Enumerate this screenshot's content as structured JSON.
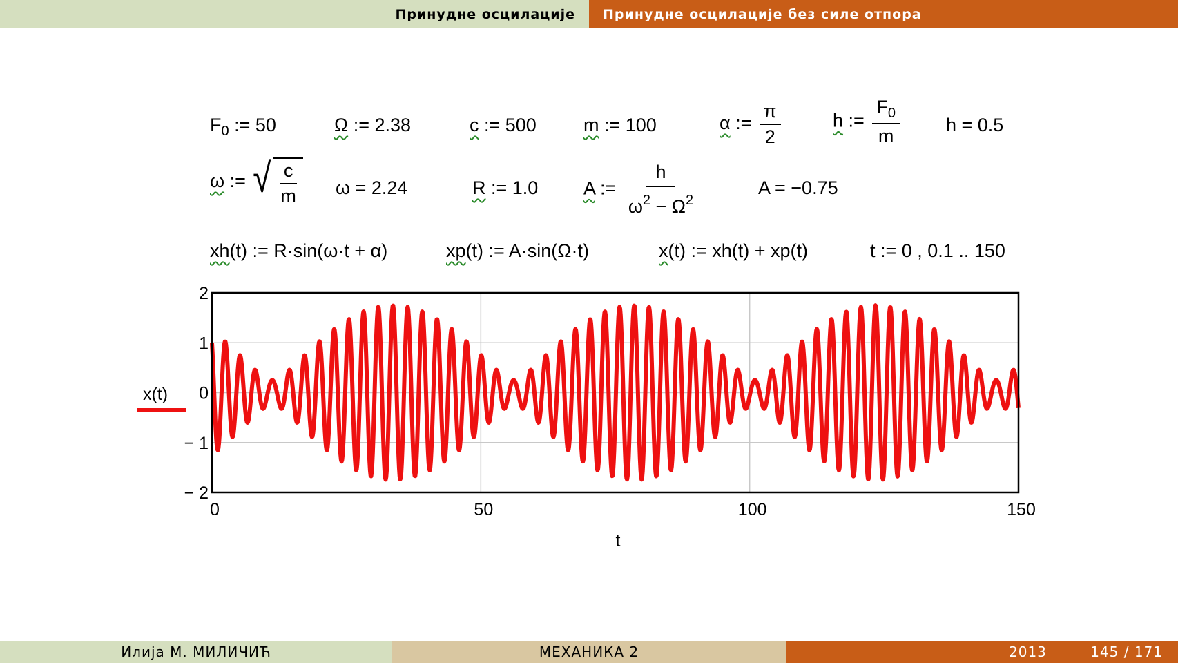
{
  "header": {
    "section": "Принудне осцилације",
    "subsection": "Принудне осцилације без силе отпора",
    "colors": {
      "left": "#d5dfbf",
      "right": "#c85d17"
    }
  },
  "math": {
    "F0_def": "F0 := 50",
    "Omega_def": "Ω := 2.38",
    "c_def": "c := 500",
    "m_def": "m := 100",
    "alpha_lhs": "α",
    "alpha_num": "π",
    "alpha_den": "2",
    "h_lhs": "h",
    "h_num": "F",
    "h_num_sub": "0",
    "h_den": "m",
    "h_val": "h = 0.5",
    "omega_lhs": "ω",
    "omega_num": "c",
    "omega_den": "m",
    "omega_val": "ω = 2.24",
    "R_def": "R := 1.0",
    "A_lhs": "A",
    "A_num": "h",
    "A_val": "A = −0.75",
    "xh_def": "xh(t) := R·sin(ω·t + α)",
    "xp_def": "xp(t) := A·sin(Ω·t)",
    "x_def": "x(t) := xh(t) + xp(t)",
    "t_def": "t := 0 , 0.1 .. 150"
  },
  "chart_data": {
    "type": "line",
    "xlabel": "t",
    "ylabel": "x(t)",
    "xlim": [
      0,
      150
    ],
    "ylim": [
      -2,
      2
    ],
    "xticks": [
      "0",
      "50",
      "100",
      "150"
    ],
    "yticks": [
      "2",
      "1",
      "0",
      "− 1",
      "− 2"
    ],
    "grid": true,
    "legend": "left",
    "series": [
      {
        "name": "x(t)",
        "color": "#ee1111",
        "formula": "x(t) = 1.0·sin(2.24·t + π/2) − 0.75·sin(2.38·t)",
        "params": {
          "R": 1.0,
          "omega": 2.24,
          "alpha": 1.5708,
          "A": -0.75,
          "Omega": 2.38
        },
        "t_start": 0,
        "t_step": 0.1,
        "t_end": 150
      }
    ]
  },
  "footer": {
    "author": "Илија М. МИЛИЧИЋ",
    "course": "МЕХАНИКА 2",
    "year": "2013",
    "page": "145 / 171"
  }
}
